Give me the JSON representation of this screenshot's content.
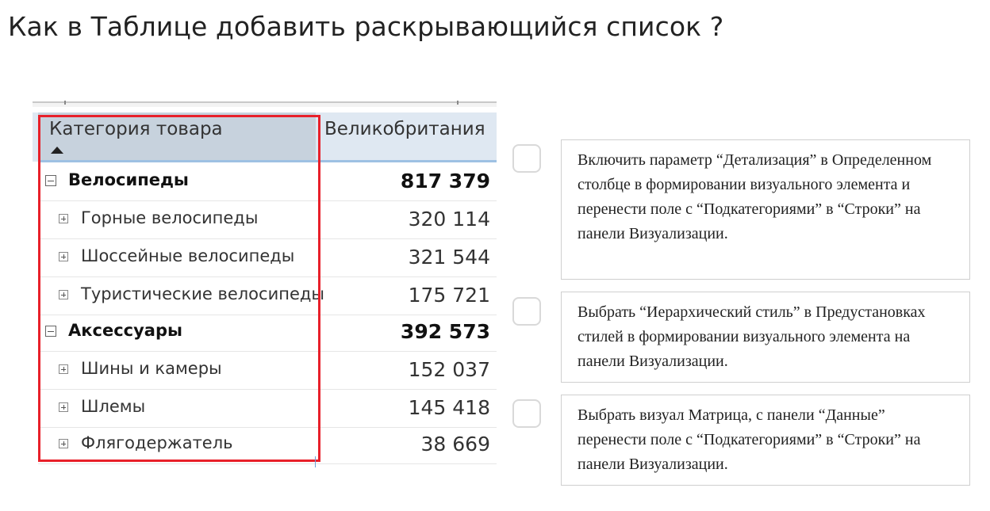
{
  "question": {
    "title": "Как в Таблице добавить раскрывающийся список ?"
  },
  "matrix": {
    "header": {
      "category_label": "Категория товара",
      "column_label": "Великобритания",
      "sort_icon": "sort-ascending-triangle"
    },
    "rows": [
      {
        "label": "Велосипеды",
        "value": "817 379",
        "level": 0,
        "expander": "minus"
      },
      {
        "label": "Горные велосипеды",
        "value": "320 114",
        "level": 1,
        "expander": "plus"
      },
      {
        "label": "Шоссейные велосипеды",
        "value": "321 544",
        "level": 1,
        "expander": "plus"
      },
      {
        "label": "Туристические велосипеды",
        "value": "175 721",
        "level": 1,
        "expander": "plus"
      },
      {
        "label": "Аксессуары",
        "value": "392 573",
        "level": 0,
        "expander": "minus"
      },
      {
        "label": "Шины и камеры",
        "value": "152 037",
        "level": 1,
        "expander": "plus"
      },
      {
        "label": "Шлемы",
        "value": "145 418",
        "level": 1,
        "expander": "plus"
      },
      {
        "label": "Флягодержатель",
        "value": "38 669",
        "level": 1,
        "expander": "plus"
      }
    ],
    "highlight_color": "#e8202a"
  },
  "options": [
    {
      "text": "Включить параметр “Детализация” в Определенном столбце в формировании визуального элемента и перенести поле с “Подкатегориями” в “Строки” на панели Визуализации.",
      "checked": false
    },
    {
      "text": "Выбрать “Иерархический стиль” в Предустановках стилей в формировании визуального элемента на панели Визуализации.",
      "checked": false
    },
    {
      "text": "Выбрать визуал Матрица, с панели “Данные” перенести поле с “Подкатегориями” в “Строки” на панели Визуализации.",
      "checked": false
    }
  ]
}
